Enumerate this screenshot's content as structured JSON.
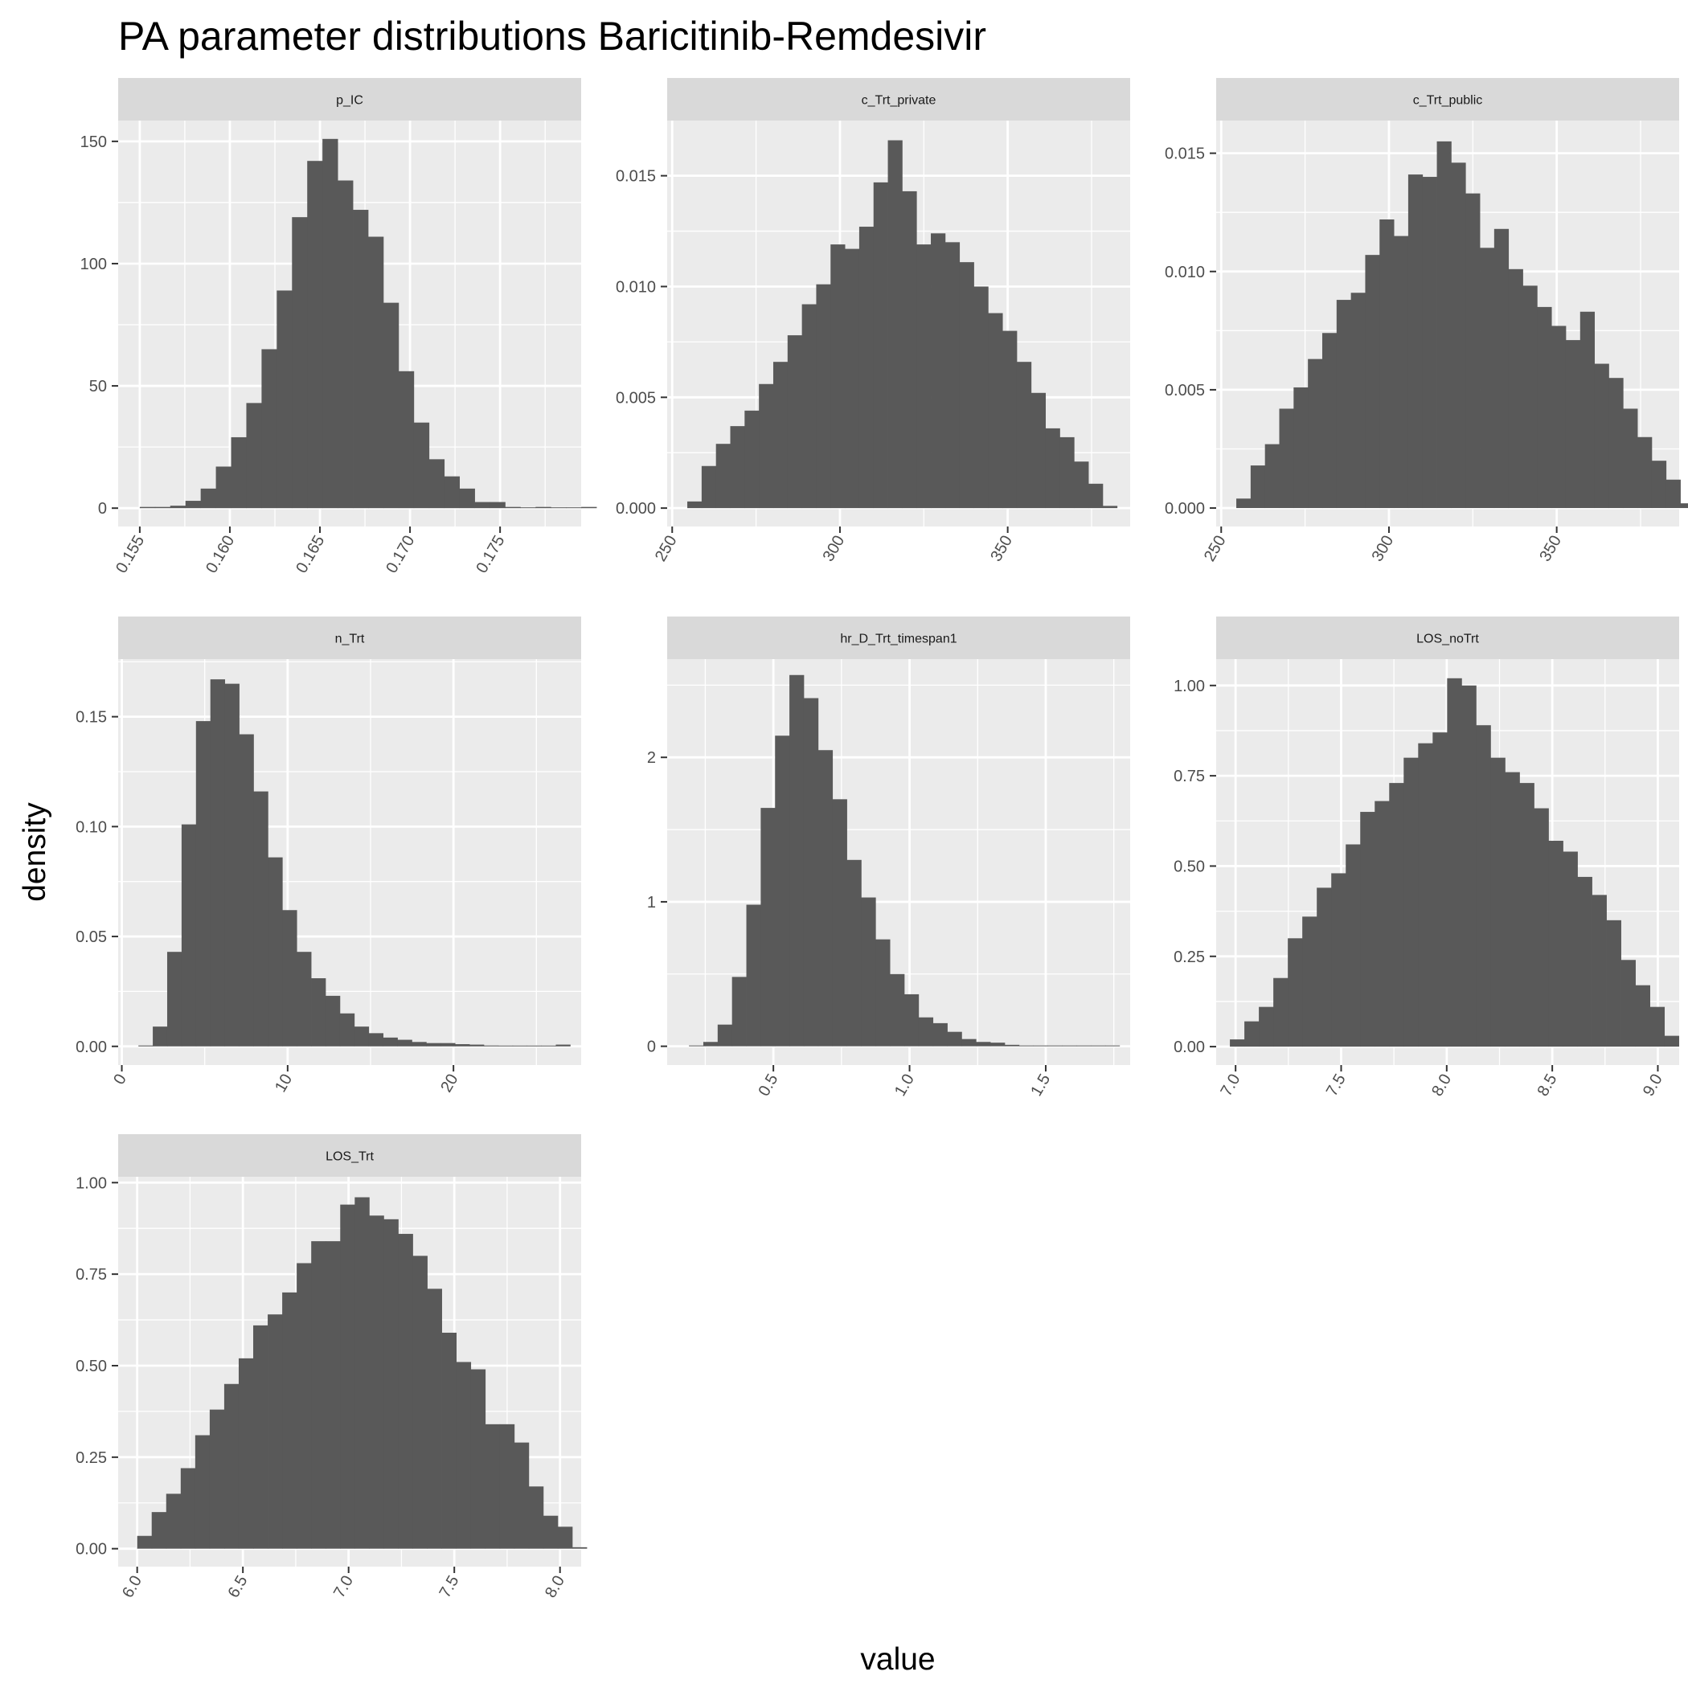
{
  "chart_data": {
    "type": "bar",
    "title": "PA parameter distributions Baricitinib-Remdesivir",
    "xlabel": "value",
    "ylabel": "density",
    "grid": true,
    "legend": "none",
    "colors": {
      "bar": "#595959",
      "panel": "#ebebeb",
      "strip": "#d9d9d9",
      "grid": "#ffffff"
    },
    "facets": [
      {
        "name": "p_IC",
        "xlim": [
          0.1538,
          0.1795
        ],
        "xticks": [
          0.155,
          0.16,
          0.165,
          0.17,
          0.175
        ],
        "xtick_labels": [
          "0.155",
          "0.160",
          "0.165",
          "0.170",
          "0.175"
        ],
        "ylim": [
          -7.5,
          158.5
        ],
        "yticks": [
          0,
          50,
          100,
          150
        ],
        "ytick_labels": [
          "0",
          "50",
          "100",
          "150"
        ],
        "bins": {
          "start": 0.155,
          "width": 0.000845,
          "density": [
            0.5,
            0.5,
            1,
            3,
            8,
            17,
            29,
            43,
            65,
            89,
            119,
            142,
            151,
            134,
            122,
            111,
            84,
            56,
            35,
            20,
            13,
            8,
            2.5,
            2.5,
            0.5,
            0,
            0.5,
            0,
            0,
            0.5
          ]
        }
      },
      {
        "name": "c_Trt_private",
        "xlim": [
          248.5,
          386.5
        ],
        "xticks": [
          250,
          300,
          350
        ],
        "xtick_labels": [
          "250",
          "300",
          "350"
        ],
        "ylim": [
          -0.00083,
          0.01749
        ],
        "yticks": [
          0,
          0.005,
          0.01,
          0.015
        ],
        "ytick_labels": [
          "0.000",
          "0.005",
          "0.010",
          "0.015"
        ],
        "bins": {
          "start": 254.5,
          "width": 4.27,
          "density": [
            0.0003,
            0.0019,
            0.0029,
            0.0037,
            0.0044,
            0.0056,
            0.0066,
            0.0078,
            0.0092,
            0.0101,
            0.0119,
            0.0117,
            0.0127,
            0.0147,
            0.0166,
            0.0143,
            0.0119,
            0.0124,
            0.012,
            0.0111,
            0.01,
            0.0088,
            0.008,
            0.0066,
            0.0052,
            0.0036,
            0.0032,
            0.0021,
            0.0011,
            0.0001
          ]
        }
      },
      {
        "name": "c_Trt_public",
        "xlim": [
          248.5,
          386.5
        ],
        "xticks": [
          250,
          300,
          350
        ],
        "xtick_labels": [
          "250",
          "300",
          "350"
        ],
        "ylim": [
          -0.00078,
          0.01638
        ],
        "yticks": [
          0,
          0.005,
          0.01,
          0.015
        ],
        "ytick_labels": [
          "0.000",
          "0.005",
          "0.010",
          "0.015"
        ],
        "bins": {
          "start": 254.5,
          "width": 4.27,
          "density": [
            0.0004,
            0.0018,
            0.0027,
            0.0042,
            0.0051,
            0.0063,
            0.0074,
            0.0088,
            0.0091,
            0.0107,
            0.0122,
            0.0115,
            0.0141,
            0.014,
            0.0155,
            0.0146,
            0.0133,
            0.011,
            0.0118,
            0.0101,
            0.0094,
            0.0085,
            0.0077,
            0.0071,
            0.0083,
            0.0061,
            0.0055,
            0.0042,
            0.003,
            0.002,
            0.0012,
            0.0002
          ]
        }
      },
      {
        "name": "n_Trt",
        "xlim": [
          -0.22,
          27.7
        ],
        "xticks": [
          0,
          10,
          20
        ],
        "xtick_labels": [
          "0",
          "10",
          "20"
        ],
        "ylim": [
          -0.0085,
          0.1762
        ],
        "yticks": [
          0,
          0.05,
          0.1,
          0.15
        ],
        "ytick_labels": [
          "0.00",
          "0.05",
          "0.10",
          "0.15"
        ],
        "bins": {
          "start": 1.0,
          "width": 0.868,
          "density": [
            0.0004,
            0.009,
            0.043,
            0.101,
            0.148,
            0.167,
            0.165,
            0.142,
            0.116,
            0.086,
            0.062,
            0.043,
            0.031,
            0.023,
            0.015,
            0.009,
            0.006,
            0.004,
            0.003,
            0.002,
            0.0015,
            0.0015,
            0.001,
            0.0008,
            0.0004,
            0.0001,
            0.0001,
            0.0001,
            0.0001,
            0.0008
          ]
        }
      },
      {
        "name": "hr_D_Trt_timespan1",
        "xlim": [
          0.11,
          1.81
        ],
        "xticks": [
          0.5,
          1.0,
          1.5
        ],
        "xtick_labels": [
          "0.5",
          "1.0",
          "1.5"
        ],
        "ylim": [
          -0.13,
          2.68
        ],
        "yticks": [
          0,
          1,
          2
        ],
        "ytick_labels": [
          "0",
          "1",
          "2"
        ],
        "bins": {
          "start": 0.19,
          "width": 0.0527,
          "density": [
            0.003,
            0.03,
            0.15,
            0.48,
            0.98,
            1.65,
            2.15,
            2.57,
            2.41,
            2.05,
            1.71,
            1.29,
            1.03,
            0.74,
            0.5,
            0.36,
            0.2,
            0.16,
            0.1,
            0.05,
            0.03,
            0.025,
            0.01,
            0.005,
            0.004,
            0.003,
            0.002,
            0.001,
            0.001,
            0.001
          ]
        }
      },
      {
        "name": "LOS_noTrt",
        "xlim": [
          6.908,
          9.101
        ],
        "xticks": [
          7.0,
          7.5,
          8.0,
          8.5,
          9.0
        ],
        "xtick_labels": [
          "7.0",
          "7.5",
          "8.0",
          "8.5",
          "9.0"
        ],
        "ylim": [
          -0.051,
          1.073
        ],
        "yticks": [
          0,
          0.25,
          0.5,
          0.75,
          1.0
        ],
        "ytick_labels": [
          "0.00",
          "0.25",
          "0.50",
          "0.75",
          "1.00"
        ],
        "bins": {
          "start": 6.973,
          "width": 0.0686,
          "density": [
            0.02,
            0.07,
            0.11,
            0.19,
            0.3,
            0.36,
            0.44,
            0.48,
            0.56,
            0.65,
            0.68,
            0.73,
            0.8,
            0.84,
            0.87,
            1.02,
            1.0,
            0.89,
            0.8,
            0.76,
            0.73,
            0.66,
            0.57,
            0.54,
            0.47,
            0.42,
            0.35,
            0.24,
            0.17,
            0.11,
            0.03
          ]
        }
      },
      {
        "name": "LOS_Trt",
        "xlim": [
          5.91,
          8.1
        ],
        "xticks": [
          6.0,
          6.5,
          7.0,
          7.5,
          8.0
        ],
        "xtick_labels": [
          "6.0",
          "6.5",
          "7.0",
          "7.5",
          "8.0"
        ],
        "ylim": [
          -0.049,
          1.016
        ],
        "yticks": [
          0,
          0.25,
          0.5,
          0.75,
          1.0
        ],
        "ytick_labels": [
          "0.00",
          "0.25",
          "0.50",
          "0.75",
          "1.00"
        ],
        "bins": {
          "start": 6.0,
          "width": 0.0686,
          "density": [
            0.035,
            0.1,
            0.15,
            0.22,
            0.31,
            0.38,
            0.45,
            0.52,
            0.61,
            0.64,
            0.7,
            0.78,
            0.84,
            0.84,
            0.94,
            0.96,
            0.91,
            0.9,
            0.86,
            0.8,
            0.71,
            0.59,
            0.51,
            0.49,
            0.34,
            0.34,
            0.29,
            0.17,
            0.09,
            0.06,
            0.004
          ]
        }
      }
    ]
  }
}
